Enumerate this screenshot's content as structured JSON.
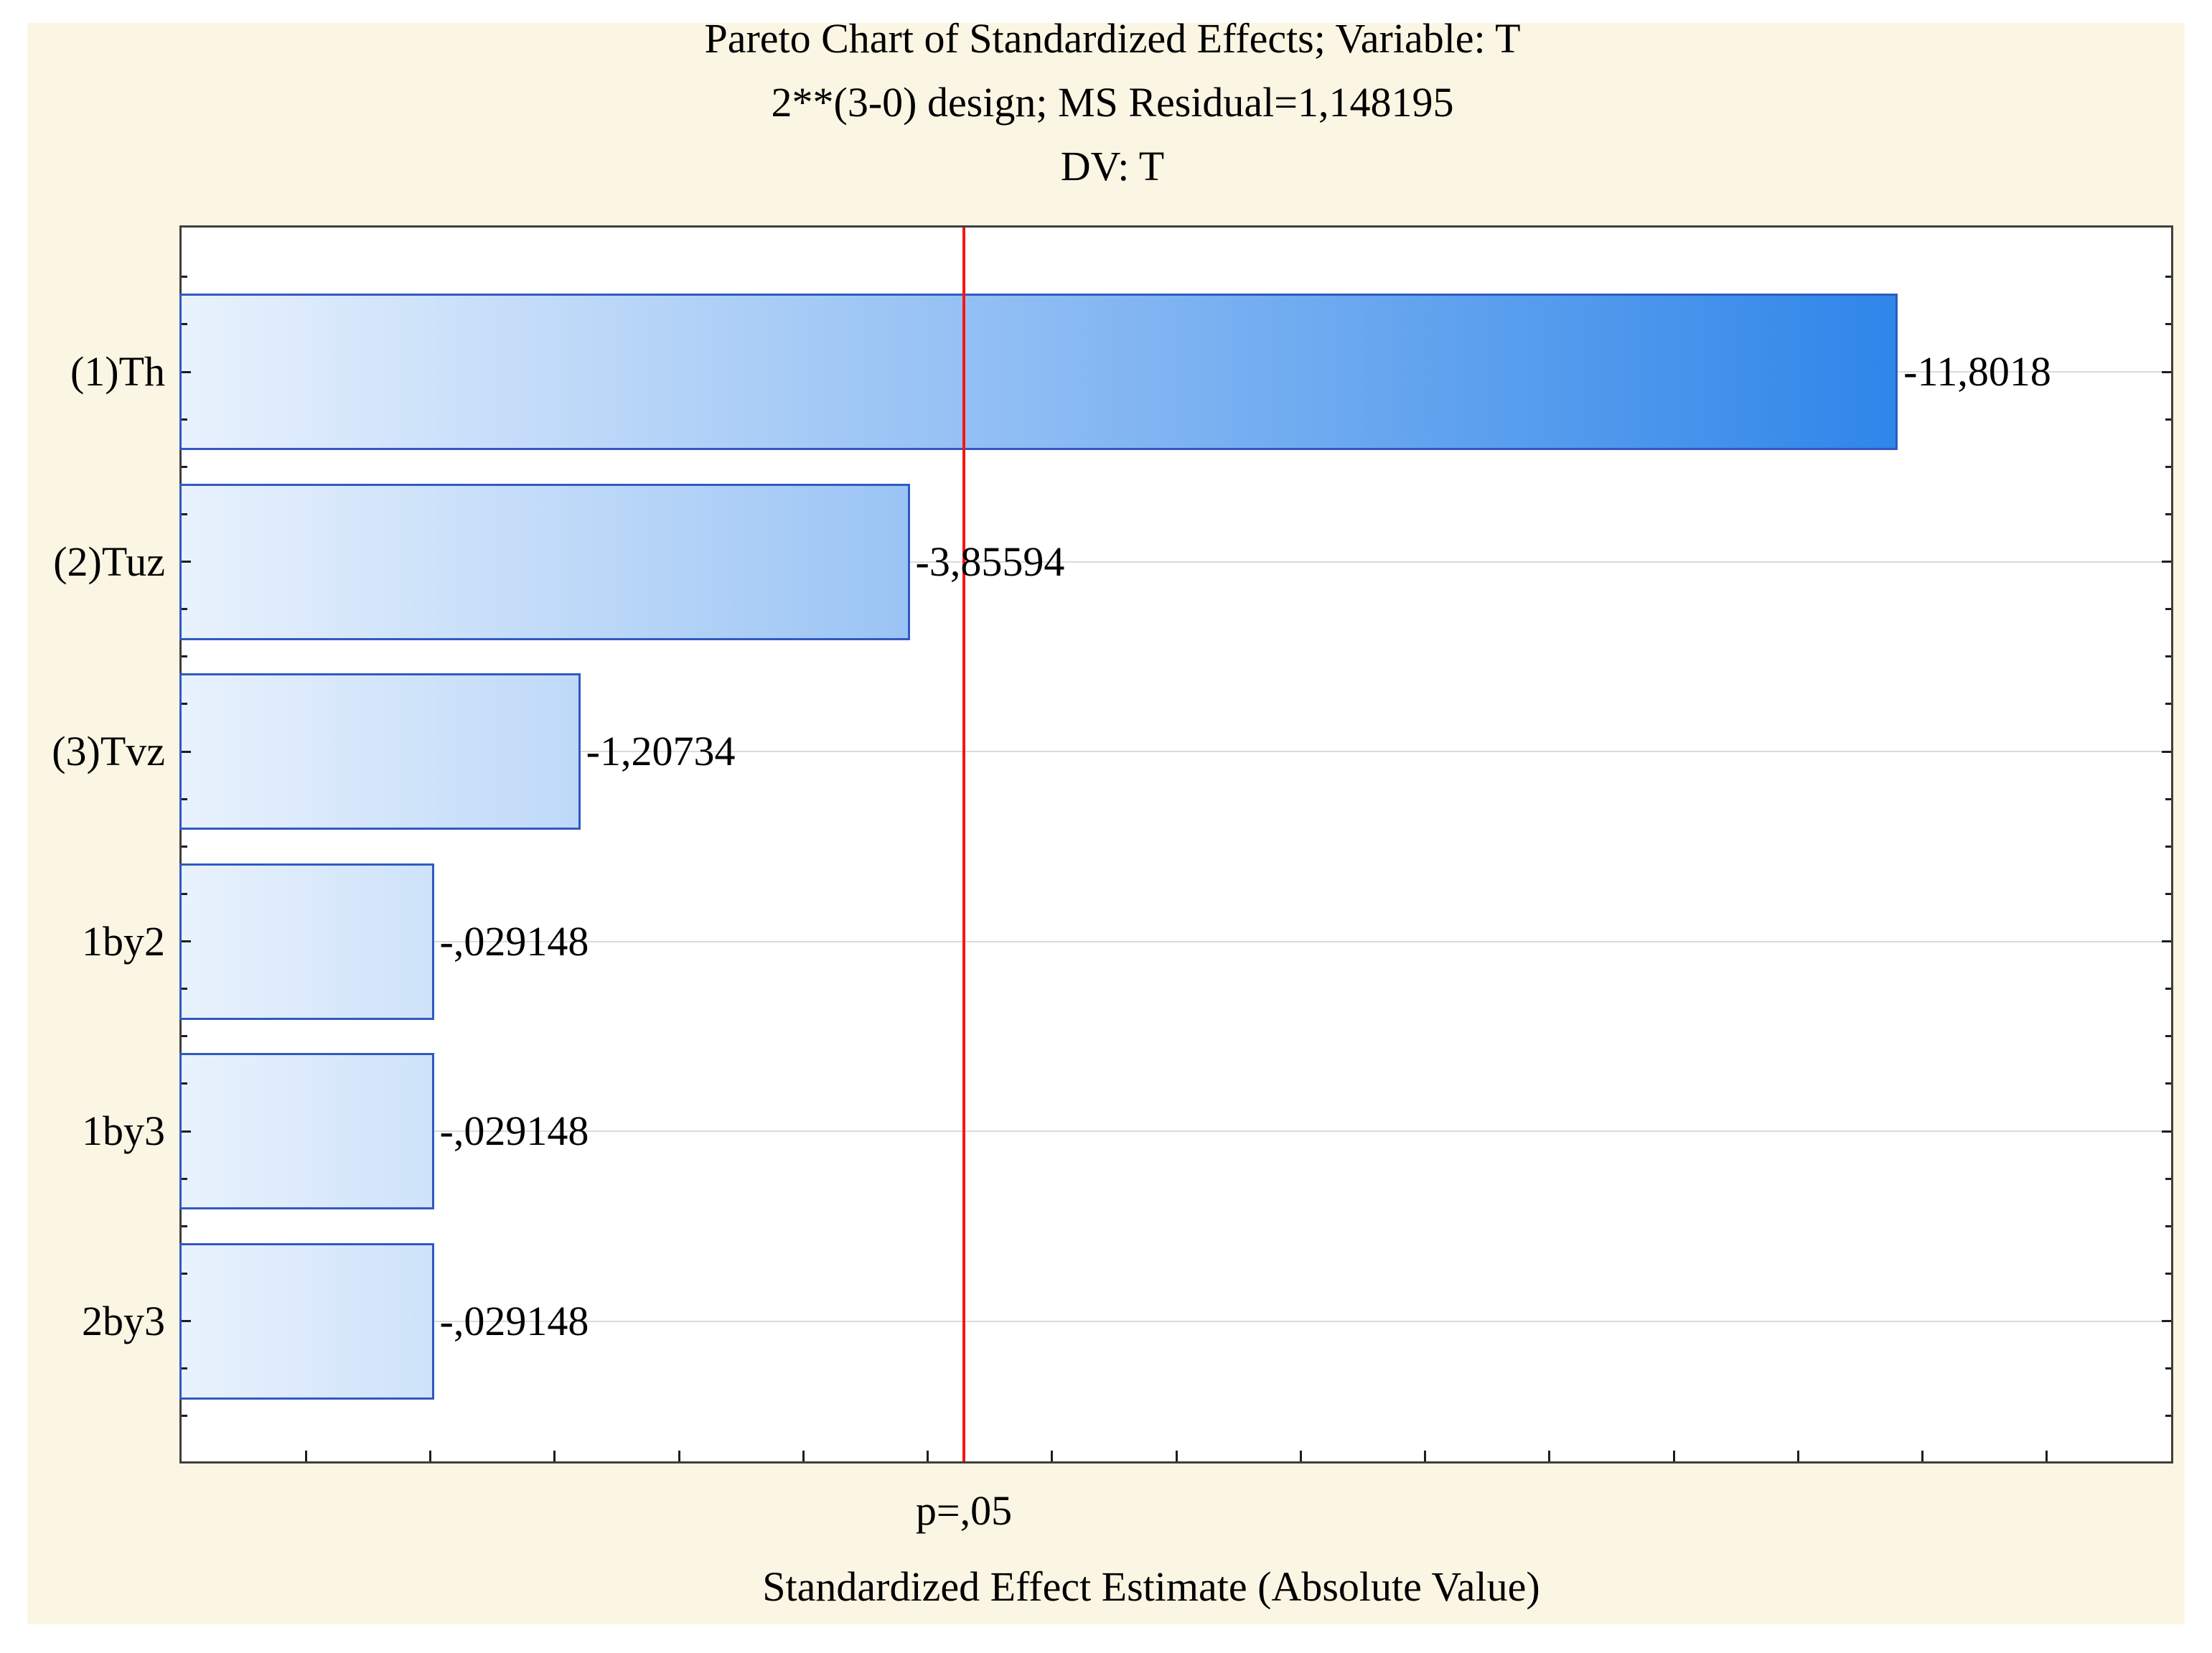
{
  "chart_data": {
    "type": "bar",
    "orientation": "horizontal",
    "title": "Pareto Chart of Standardized Effects; Variable: T",
    "subtitle": "2**(3-0) design; MS Residual=1,148195",
    "subtitle2": "DV: T",
    "xlabel": "Standardized Effect Estimate (Absolute Value)",
    "ylabel": "",
    "categories": [
      "(1)Th",
      "(2)Tuz",
      "(3)Tvz",
      "1by2",
      "1by3",
      "2by3"
    ],
    "values": [
      -11.8018,
      -3.85594,
      -1.20734,
      -0.029148,
      -0.029148,
      -0.029148
    ],
    "values_abs": [
      11.8018,
      3.85594,
      1.20734,
      0.029148,
      0.029148,
      0.029148
    ],
    "bar_labels": [
      "-11,8018",
      "-3,85594",
      "-1,20734",
      "-,029148",
      "-,029148",
      "-,029148"
    ],
    "decimal_separator": ",",
    "xlim": [
      -2,
      14
    ],
    "x_tick_step": 1,
    "grid": "horizontal-gridline-at-each-bar-center",
    "legend": "none",
    "reference_line": {
      "label": "p=,05",
      "value": 4.29
    }
  },
  "colors": {
    "panel_background": "#FBF5E3",
    "plot_background": "#FFFFFF",
    "plot_border": "#3F3F3F",
    "bar_border": "#3159C1",
    "bar_gradient_start": "#E9F2FD",
    "bar_gradient_end": "#1174E6",
    "reference_line": "#F91515",
    "gridline": "#DBDBDB",
    "tick": "#1E1E1E",
    "text": "#000000"
  }
}
